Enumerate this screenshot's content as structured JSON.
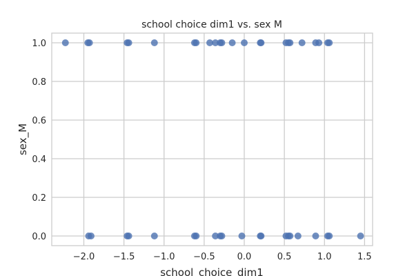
{
  "chart_data": {
    "type": "scatter",
    "title": "school choice dim1 vs. sex M",
    "xlabel": "school_choice_dim1",
    "ylabel": "sex_M",
    "xlim": [
      -2.4,
      1.6
    ],
    "ylim": [
      -0.05,
      1.05
    ],
    "xticks": [
      -2.0,
      -1.5,
      -1.0,
      -0.5,
      0.0,
      0.5,
      1.0,
      1.5
    ],
    "xtick_labels": [
      "−2.0",
      "−1.5",
      "−1.0",
      "−0.5",
      "0.0",
      "0.5",
      "1.0",
      "1.5"
    ],
    "yticks": [
      0.0,
      0.2,
      0.4,
      0.6,
      0.8,
      1.0
    ],
    "ytick_labels": [
      "0.0",
      "0.2",
      "0.4",
      "0.6",
      "0.8",
      "1.0"
    ],
    "grid": true,
    "marker_color": "#4c72b0",
    "points": [
      {
        "x": -2.23,
        "y": 1
      },
      {
        "x": -1.95,
        "y": 1
      },
      {
        "x": -1.93,
        "y": 1
      },
      {
        "x": -1.46,
        "y": 1
      },
      {
        "x": -1.44,
        "y": 1
      },
      {
        "x": -1.12,
        "y": 1
      },
      {
        "x": -0.62,
        "y": 1
      },
      {
        "x": -0.6,
        "y": 1
      },
      {
        "x": -0.43,
        "y": 1
      },
      {
        "x": -0.36,
        "y": 1
      },
      {
        "x": -0.3,
        "y": 1
      },
      {
        "x": -0.28,
        "y": 1
      },
      {
        "x": -0.15,
        "y": 1
      },
      {
        "x": 0.0,
        "y": 1
      },
      {
        "x": 0.2,
        "y": 1
      },
      {
        "x": 0.21,
        "y": 1
      },
      {
        "x": 0.52,
        "y": 1
      },
      {
        "x": 0.55,
        "y": 1
      },
      {
        "x": 0.57,
        "y": 1
      },
      {
        "x": 0.72,
        "y": 1
      },
      {
        "x": 0.89,
        "y": 1
      },
      {
        "x": 0.93,
        "y": 1
      },
      {
        "x": 1.04,
        "y": 1
      },
      {
        "x": 1.06,
        "y": 1
      },
      {
        "x": -1.94,
        "y": 0
      },
      {
        "x": -1.91,
        "y": 0
      },
      {
        "x": -1.46,
        "y": 0
      },
      {
        "x": -1.44,
        "y": 0
      },
      {
        "x": -1.12,
        "y": 0
      },
      {
        "x": -0.62,
        "y": 0
      },
      {
        "x": -0.6,
        "y": 0
      },
      {
        "x": -0.36,
        "y": 0
      },
      {
        "x": -0.3,
        "y": 0
      },
      {
        "x": -0.28,
        "y": 0
      },
      {
        "x": -0.03,
        "y": 0
      },
      {
        "x": 0.2,
        "y": 0
      },
      {
        "x": 0.21,
        "y": 0
      },
      {
        "x": 0.52,
        "y": 0
      },
      {
        "x": 0.55,
        "y": 0
      },
      {
        "x": 0.57,
        "y": 0
      },
      {
        "x": 0.67,
        "y": 0
      },
      {
        "x": 0.89,
        "y": 0
      },
      {
        "x": 1.04,
        "y": 0
      },
      {
        "x": 1.06,
        "y": 0
      },
      {
        "x": 1.45,
        "y": 0
      }
    ]
  }
}
